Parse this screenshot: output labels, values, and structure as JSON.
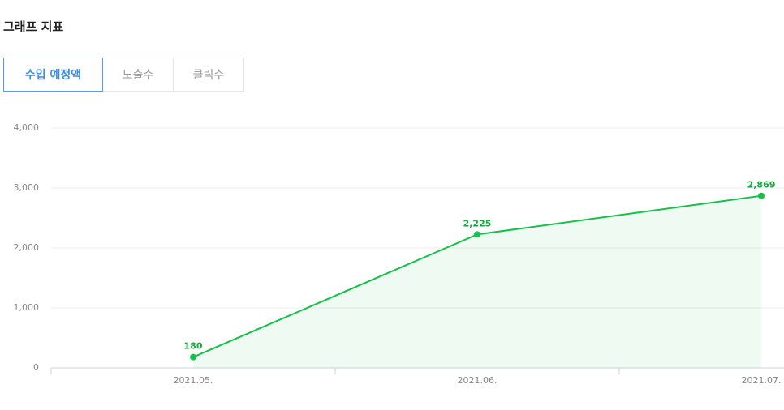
{
  "header": {
    "title": "그래프 지표"
  },
  "tabs": [
    "수입 예정액",
    "노출수",
    "클릭수"
  ],
  "chart_data": {
    "type": "line",
    "categories": [
      "2021.05.",
      "2021.06.",
      "2021.07."
    ],
    "values": [
      180,
      2225,
      2869
    ],
    "value_labels": [
      "180",
      "2,225",
      "2,869"
    ],
    "color": "#17c04a",
    "area": true,
    "ylim": [
      0,
      4000
    ],
    "yticks": [
      0,
      {
        "value": 1000,
        "label": "1,000"
      },
      {
        "value": 2000,
        "label": "2,000"
      },
      {
        "value": 3000,
        "label": "3,000"
      },
      {
        "value": 4000,
        "label": "4,000"
      }
    ],
    "grid": true
  }
}
